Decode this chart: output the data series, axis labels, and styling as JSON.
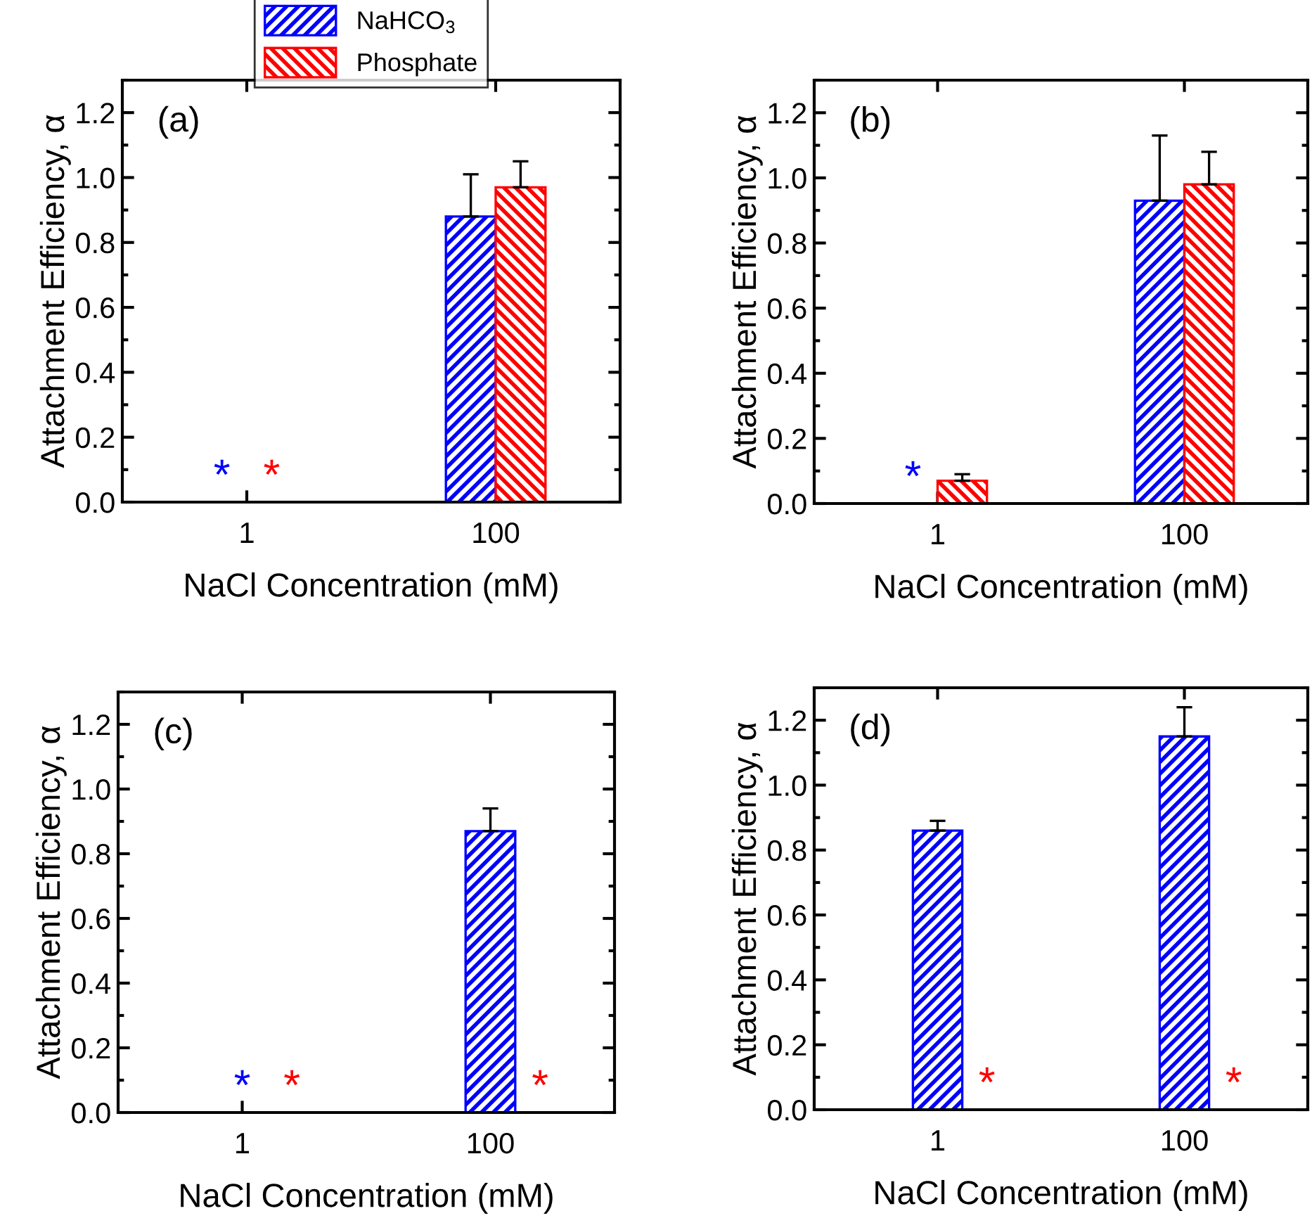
{
  "chart_data": [
    {
      "type": "bar",
      "categories": [
        "1",
        "100"
      ],
      "xlabel": "NaCl Concentration (mM)",
      "ylabel": "Attachment Efficiency, α",
      "annotations": [
        "(a)"
      ],
      "legend": "top",
      "ylim": [
        0,
        1.3
      ],
      "yticks": [
        {
          "value": 0,
          "label": "0.0"
        },
        {
          "value": 0.2,
          "label": "0.2"
        },
        {
          "value": 0.4,
          "label": "0.4"
        },
        {
          "value": 0.6,
          "label": "0.6"
        },
        {
          "value": 0.8,
          "label": "0.8"
        },
        {
          "value": 1.0,
          "label": "1.0"
        },
        {
          "value": 1.2,
          "label": "1.2"
        }
      ],
      "series": [
        {
          "name": "NaHCO$_{3}$",
          "color": "#0000ff",
          "values": [
            null,
            0.88
          ],
          "errors": [
            null,
            [
              0.88,
              1.01
            ]
          ],
          "value_labels": [
            "*",
            null
          ]
        },
        {
          "name": "Phosphate",
          "color": "#ff0000",
          "values": [
            null,
            0.97
          ],
          "errors": [
            null,
            [
              0.97,
              1.05
            ]
          ],
          "value_labels": [
            "*",
            null
          ]
        }
      ]
    },
    {
      "type": "bar",
      "categories": [
        "1",
        "100"
      ],
      "xlabel": "NaCl Concentration (mM)",
      "ylabel": "Attachment Efficiency, α",
      "annotations": [
        "(b)"
      ],
      "ylim": [
        0,
        1.3
      ],
      "yticks": [
        {
          "value": 0,
          "label": "0.0"
        },
        {
          "value": 0.2,
          "label": "0.2"
        },
        {
          "value": 0.4,
          "label": "0.4"
        },
        {
          "value": 0.6,
          "label": "0.6"
        },
        {
          "value": 0.8,
          "label": "0.8"
        },
        {
          "value": 1.0,
          "label": "1.0"
        },
        {
          "value": 1.2,
          "label": "1.2"
        }
      ],
      "series": [
        {
          "color": "#0000ff",
          "values": [
            null,
            0.93
          ],
          "errors": [
            null,
            [
              0.93,
              1.13
            ]
          ],
          "value_labels": [
            "*",
            null
          ]
        },
        {
          "color": "#ff0000",
          "values": [
            0.07,
            0.98
          ],
          "errors": [
            [
              0.07,
              0.09
            ],
            [
              0.98,
              1.08
            ]
          ],
          "value_labels": [
            null,
            null
          ]
        }
      ]
    },
    {
      "type": "bar",
      "categories": [
        "1",
        "100"
      ],
      "xlabel": "NaCl Concentration (mM)",
      "ylabel": "Attachment Efficiency, α",
      "annotations": [
        "(c)"
      ],
      "ylim": [
        0,
        1.3
      ],
      "yticks": [
        {
          "value": 0,
          "label": "0.0"
        },
        {
          "value": 0.2,
          "label": "0.2"
        },
        {
          "value": 0.4,
          "label": "0.4"
        },
        {
          "value": 0.6,
          "label": "0.6"
        },
        {
          "value": 0.8,
          "label": "0.8"
        },
        {
          "value": 1.0,
          "label": "1.0"
        },
        {
          "value": 1.2,
          "label": "1.2"
        }
      ],
      "series": [
        {
          "color": "#0000ff",
          "values": [
            null,
            0.87
          ],
          "errors": [
            null,
            [
              0.87,
              0.94
            ]
          ],
          "value_labels": [
            "*",
            null
          ]
        },
        {
          "color": "#ff0000",
          "values": [
            null,
            null
          ],
          "value_labels": [
            "*",
            "*"
          ]
        }
      ]
    },
    {
      "type": "bar",
      "categories": [
        "1",
        "100"
      ],
      "xlabel": "NaCl Concentration (mM)",
      "ylabel": "Attachment Efficiency, α",
      "annotations": [
        "(d)"
      ],
      "ylim": [
        0,
        1.3
      ],
      "yticks": [
        {
          "value": 0,
          "label": "0.0"
        },
        {
          "value": 0.2,
          "label": "0.2"
        },
        {
          "value": 0.4,
          "label": "0.4"
        },
        {
          "value": 0.6,
          "label": "0.6"
        },
        {
          "value": 0.8,
          "label": "0.8"
        },
        {
          "value": 1.0,
          "label": "1.0"
        },
        {
          "value": 1.2,
          "label": "1.2"
        }
      ],
      "series": [
        {
          "color": "#0000ff",
          "values": [
            0.86,
            1.15
          ],
          "errors": [
            [
              0.86,
              0.89
            ],
            [
              1.15,
              1.24
            ]
          ],
          "value_labels": [
            null,
            null
          ]
        },
        {
          "color": "#ff0000",
          "values": [
            null,
            null
          ],
          "value_labels": [
            "*",
            "*"
          ]
        }
      ]
    }
  ]
}
